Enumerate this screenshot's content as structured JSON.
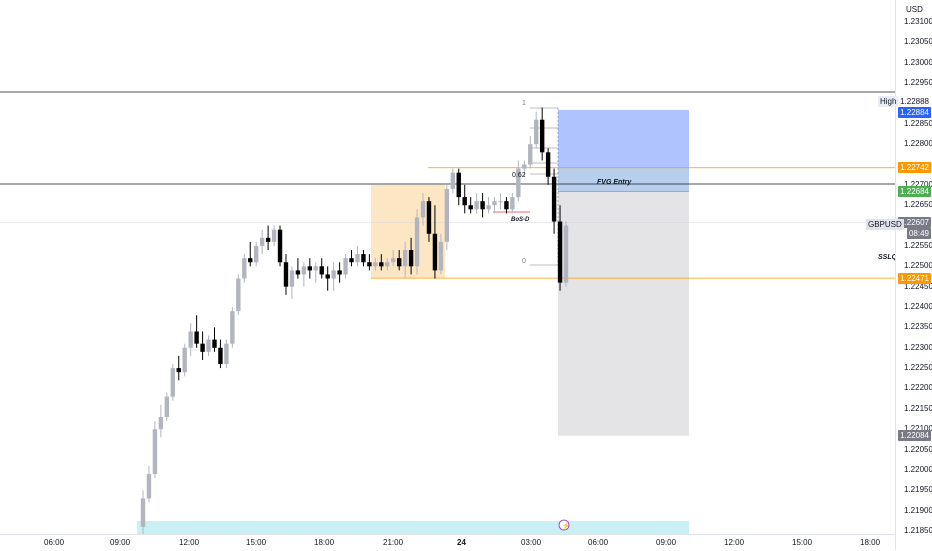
{
  "currency": "USD",
  "symbol": "GBPUSD",
  "countdown": "08:49",
  "high_label": "High",
  "price_ticks": [
    "1.23100",
    "1.23050",
    "1.23000",
    "1.22950",
    "1.22850",
    "1.22800",
    "1.22700",
    "1.22650",
    "1.22550",
    "1.22500",
    "1.22450",
    "1.22400",
    "1.22350",
    "1.22300",
    "1.22250",
    "1.22200",
    "1.22150",
    "1.22100",
    "1.22050",
    "1.22000",
    "1.21950",
    "1.21900",
    "1.21850"
  ],
  "time_ticks": [
    "06:00",
    "09:00",
    "12:00",
    "15:00",
    "18:00",
    "21:00",
    "24",
    "03:00",
    "06:00",
    "09:00",
    "12:00",
    "15:00",
    "18:00"
  ],
  "price_tags": {
    "high": "1.22888",
    "target": "1.22884",
    "orange_top": "1.22742",
    "entry": "1.22684",
    "current": "1.22607",
    "sslq": "1.22471",
    "stop": "1.22084"
  },
  "fib_labels": [
    "1",
    "0.62",
    "0"
  ],
  "annotations": {
    "fvg": "FVG Entry",
    "bos": "BoS-D",
    "sslq": "SSLQ"
  },
  "colors": {
    "bull": "#b2b5be",
    "bear": "#000000",
    "orange": "#ff9800",
    "blue_tag": "#2962ff",
    "green_tag": "#4caf50",
    "grey_tag": "#787b86",
    "target_zone": "#a5bcff",
    "stop_zone": "#e1e1e3",
    "session_zone": "#fde0b5",
    "cyan_zone": "#c9f1f5",
    "bos_line": "#f23645"
  },
  "chart_data": {
    "type": "candlestick",
    "symbol": "GBPUSD",
    "ylim": [
      1.2184,
      1.2312
    ],
    "candles_ohlc": [
      [
        1.2186,
        1.2195,
        1.2184,
        1.2193
      ],
      [
        1.2193,
        1.2201,
        1.2192,
        1.2199
      ],
      [
        1.2199,
        1.2212,
        1.2198,
        1.221
      ],
      [
        1.221,
        1.2216,
        1.2208,
        1.2213
      ],
      [
        1.2213,
        1.2219,
        1.2212,
        1.2218
      ],
      [
        1.2218,
        1.2226,
        1.2217,
        1.2225
      ],
      [
        1.2225,
        1.2228,
        1.2222,
        1.2224
      ],
      [
        1.2224,
        1.2231,
        1.2223,
        1.223
      ],
      [
        1.223,
        1.2236,
        1.2228,
        1.2234
      ],
      [
        1.2234,
        1.2238,
        1.223,
        1.2231
      ],
      [
        1.2231,
        1.2234,
        1.2227,
        1.2229
      ],
      [
        1.2229,
        1.2233,
        1.2228,
        1.2232
      ],
      [
        1.2232,
        1.2235,
        1.2229,
        1.223
      ],
      [
        1.223,
        1.2232,
        1.2225,
        1.2226
      ],
      [
        1.2226,
        1.2232,
        1.2225,
        1.2231
      ],
      [
        1.2231,
        1.224,
        1.223,
        1.2239
      ],
      [
        1.2239,
        1.2248,
        1.2238,
        1.2247
      ],
      [
        1.2247,
        1.2253,
        1.2246,
        1.2252
      ],
      [
        1.2252,
        1.2256,
        1.225,
        1.2251
      ],
      [
        1.2251,
        1.2256,
        1.225,
        1.2255
      ],
      [
        1.2255,
        1.2259,
        1.2253,
        1.2257
      ],
      [
        1.2257,
        1.226,
        1.2254,
        1.2256
      ],
      [
        1.2256,
        1.226,
        1.2255,
        1.2259
      ],
      [
        1.2259,
        1.226,
        1.225,
        1.2251
      ],
      [
        1.2251,
        1.2253,
        1.2243,
        1.2245
      ],
      [
        1.2245,
        1.225,
        1.2242,
        1.2249
      ],
      [
        1.2249,
        1.2252,
        1.2247,
        1.2248
      ],
      [
        1.2248,
        1.2251,
        1.2245,
        1.225
      ],
      [
        1.225,
        1.2252,
        1.2247,
        1.2249
      ],
      [
        1.2249,
        1.2251,
        1.2246,
        1.225
      ],
      [
        1.225,
        1.2252,
        1.2247,
        1.2248
      ],
      [
        1.2248,
        1.225,
        1.2244,
        1.2247
      ],
      [
        1.2247,
        1.2251,
        1.2244,
        1.2249
      ],
      [
        1.2249,
        1.2251,
        1.2246,
        1.2248
      ],
      [
        1.2248,
        1.2253,
        1.2247,
        1.2252
      ],
      [
        1.2252,
        1.2254,
        1.225,
        1.2251
      ],
      [
        1.2251,
        1.2255,
        1.225,
        1.2253
      ],
      [
        1.2253,
        1.2254,
        1.225,
        1.2251
      ],
      [
        1.2251,
        1.2253,
        1.2249,
        1.225
      ],
      [
        1.225,
        1.2252,
        1.2249,
        1.2251
      ],
      [
        1.2251,
        1.2253,
        1.2249,
        1.225
      ],
      [
        1.225,
        1.2252,
        1.2249,
        1.2251
      ],
      [
        1.2251,
        1.2254,
        1.225,
        1.2252
      ],
      [
        1.2252,
        1.2254,
        1.2249,
        1.225
      ],
      [
        1.225,
        1.2256,
        1.2247,
        1.2254
      ],
      [
        1.2254,
        1.2257,
        1.2248,
        1.225
      ],
      [
        1.225,
        1.2264,
        1.2248,
        1.2262
      ],
      [
        1.2262,
        1.2268,
        1.226,
        1.2266
      ],
      [
        1.2266,
        1.2267,
        1.2256,
        1.2258
      ],
      [
        1.2258,
        1.2265,
        1.2247,
        1.2249
      ],
      [
        1.2249,
        1.2258,
        1.2248,
        1.2256
      ],
      [
        1.2256,
        1.227,
        1.2254,
        1.2269
      ],
      [
        1.2269,
        1.2274,
        1.2268,
        1.2273
      ],
      [
        1.2273,
        1.2274,
        1.2265,
        1.2267
      ],
      [
        1.2267,
        1.227,
        1.2263,
        1.2265
      ],
      [
        1.2265,
        1.2267,
        1.2263,
        1.2264
      ],
      [
        1.2264,
        1.2268,
        1.2263,
        1.2266
      ],
      [
        1.2266,
        1.2268,
        1.2262,
        1.2264
      ],
      [
        1.2264,
        1.2267,
        1.2263,
        1.2265
      ],
      [
        1.2265,
        1.2267,
        1.2263,
        1.2266
      ],
      [
        1.2266,
        1.2268,
        1.2264,
        1.2266
      ],
      [
        1.2266,
        1.2267,
        1.2263,
        1.2264
      ],
      [
        1.2264,
        1.2268,
        1.2263,
        1.2267
      ],
      [
        1.2267,
        1.2276,
        1.2266,
        1.2274
      ],
      [
        1.2274,
        1.2276,
        1.2272,
        1.2275
      ],
      [
        1.2275,
        1.2282,
        1.2274,
        1.228
      ],
      [
        1.228,
        1.2288,
        1.2279,
        1.2286
      ],
      [
        1.2286,
        1.2289,
        1.2276,
        1.2278
      ],
      [
        1.2278,
        1.2279,
        1.227,
        1.2272
      ],
      [
        1.2272,
        1.2274,
        1.2258,
        1.2261
      ],
      [
        1.2261,
        1.2265,
        1.2244,
        1.2246
      ],
      [
        1.2246,
        1.2261,
        1.2245,
        1.226
      ]
    ],
    "levels": {
      "high": 1.22888,
      "target": 1.22884,
      "orange_top": 1.22742,
      "entry": 1.22684,
      "current": 1.22607,
      "sslq": 1.22471,
      "stop": 1.22084,
      "black_line_top": 1.2295,
      "black_line_mid": 1.2271,
      "grey_line": 1.2261
    }
  }
}
